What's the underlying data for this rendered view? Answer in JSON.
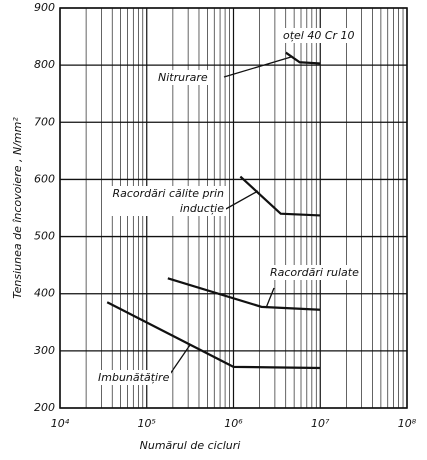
{
  "chart_data": {
    "type": "line",
    "annotation": "oțel 40 Cr 10",
    "x_label": "Numărul de cicluri",
    "y_label": "Tensiunea de încovoiere , N/mm²",
    "xscale": "log",
    "xlim": [
      10000,
      100000000
    ],
    "xticks": [
      {
        "value": 10000,
        "label": "10⁴"
      },
      {
        "value": 100000,
        "label": "10⁵"
      },
      {
        "value": 1000000,
        "label": "10⁶"
      },
      {
        "value": 10000000,
        "label": "10⁷"
      },
      {
        "value": 100000000,
        "label": "10⁸"
      }
    ],
    "x_minor_grid": [
      20000,
      30000,
      40000,
      50000,
      60000,
      70000,
      80000,
      90000,
      200000,
      300000,
      400000,
      500000,
      600000,
      700000,
      800000,
      900000,
      2000000,
      3000000,
      4000000,
      5000000,
      6000000,
      7000000,
      8000000,
      9000000,
      20000000,
      30000000,
      40000000,
      50000000,
      60000000,
      70000000,
      80000000,
      90000000
    ],
    "ylim": [
      200,
      900
    ],
    "yticks": [
      200,
      300,
      400,
      500,
      600,
      700,
      800,
      900
    ],
    "grid": true,
    "series": [
      {
        "name": "Nitrurare",
        "color": "#111111",
        "x": [
          4000000,
          5800000,
          10000000
        ],
        "values": [
          822,
          805,
          803
        ]
      },
      {
        "name": "Racordări călite prin inducție",
        "color": "#111111",
        "x": [
          1200000,
          3500000,
          10000000
        ],
        "values": [
          605,
          540,
          537
        ]
      },
      {
        "name": "Racordări rulate",
        "color": "#111111",
        "x": [
          175000,
          2100000,
          10000000
        ],
        "values": [
          427,
          377,
          372
        ]
      },
      {
        "name": "Imbunătățire",
        "color": "#111111",
        "x": [
          35000,
          1000000,
          10000000
        ],
        "values": [
          385,
          272,
          270
        ]
      }
    ]
  }
}
